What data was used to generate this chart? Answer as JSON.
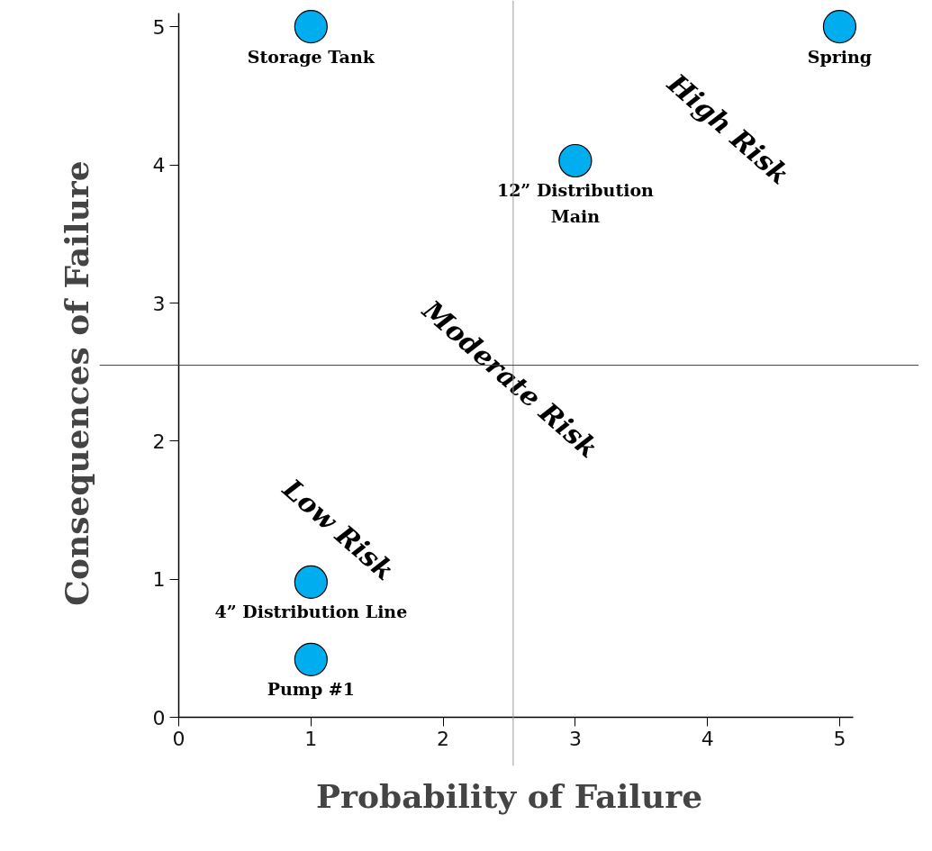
{
  "chart_data": {
    "type": "scatter",
    "xlabel": "Probability of Failure",
    "ylabel": "Consequences of Failure",
    "x": [
      1,
      5,
      3,
      1,
      1
    ],
    "values": [
      5,
      5,
      4.03,
      0.98,
      0.42
    ],
    "color": "#00aeef",
    "marker": "circle",
    "xlim": [
      -0.6,
      5.6
    ],
    "ylim": [
      -0.35,
      5.19
    ],
    "xticks": [
      0,
      1,
      2,
      3,
      4,
      5
    ],
    "yticks": [
      0,
      1,
      2,
      3,
      4,
      5
    ],
    "grid": false,
    "ref_lines": [
      {
        "axis": "x",
        "value": 2.53,
        "color": "#9a9a9a"
      },
      {
        "axis": "y",
        "value": 2.55,
        "color": "#5a3a2a"
      }
    ],
    "annotations": [
      {
        "text": "Storage Tank",
        "x": 1,
        "y": 5
      },
      {
        "text": "Spring",
        "x": 5,
        "y": 5
      },
      {
        "text": "12” Distribution\nMain",
        "x": 3,
        "y": 4.03
      },
      {
        "text": "4” Distribution Line",
        "x": 1,
        "y": 0.98
      },
      {
        "text": "Pump #1",
        "x": 1,
        "y": 0.42
      },
      "Low Risk",
      "Moderate Risk",
      "High Risk"
    ]
  }
}
